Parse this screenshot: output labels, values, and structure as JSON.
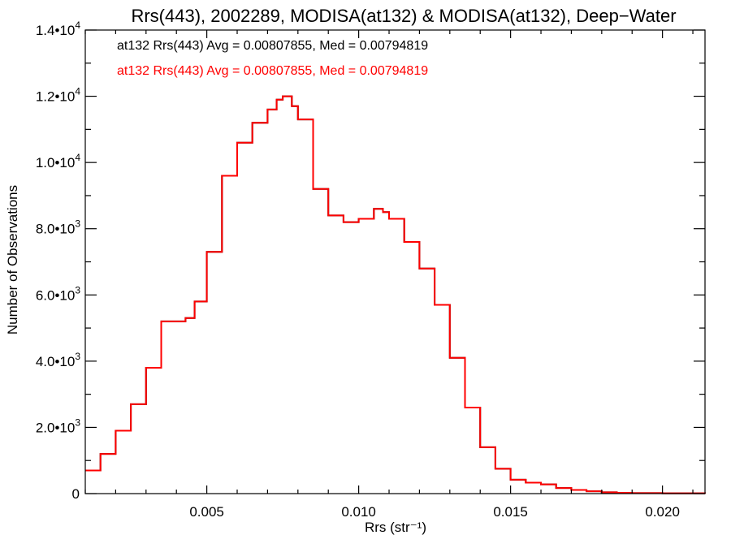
{
  "chart_data": {
    "type": "step-histogram",
    "title": "Rrs(443), 2002289, MODISA(at132) & MODISA(at132), Deep−Water",
    "xlabel": "Rrs (str⁻¹)",
    "ylabel": "Number of Observations",
    "xlim": [
      0.001,
      0.0214
    ],
    "ylim": [
      0,
      14000
    ],
    "x_ticks": [
      {
        "value": 0.005,
        "label": "0.005"
      },
      {
        "value": 0.01,
        "label": "0.010"
      },
      {
        "value": 0.015,
        "label": "0.015"
      },
      {
        "value": 0.02,
        "label": "0.020"
      }
    ],
    "y_ticks": [
      {
        "value": 0,
        "mantissa": "0",
        "exp": ""
      },
      {
        "value": 2000,
        "mantissa": "2.0•10",
        "exp": "3"
      },
      {
        "value": 4000,
        "mantissa": "4.0•10",
        "exp": "3"
      },
      {
        "value": 6000,
        "mantissa": "6.0•10",
        "exp": "3"
      },
      {
        "value": 8000,
        "mantissa": "8.0•10",
        "exp": "3"
      },
      {
        "value": 10000,
        "mantissa": "1.0•10",
        "exp": "4"
      },
      {
        "value": 12000,
        "mantissa": "1.2•10",
        "exp": "4"
      },
      {
        "value": 14000,
        "mantissa": "1.4•10",
        "exp": "4"
      }
    ],
    "legend_entries": [
      {
        "text": "at132 Rrs(443) Avg = 0.00807855, Med = 0.00794819",
        "color": "#000000"
      },
      {
        "text": "at132 Rrs(443) Avg = 0.00807855, Med = 0.00794819",
        "color": "#ff0000"
      }
    ],
    "legend_position": "top-left",
    "series": [
      {
        "color": "#ff0000",
        "x": [
          0.001,
          0.0015,
          0.002,
          0.0025,
          0.003,
          0.0035,
          0.004,
          0.0043,
          0.0046,
          0.005,
          0.0055,
          0.006,
          0.0065,
          0.007,
          0.0073,
          0.0075,
          0.0078,
          0.008,
          0.0085,
          0.009,
          0.0095,
          0.01,
          0.0105,
          0.0108,
          0.011,
          0.0115,
          0.012,
          0.0125,
          0.013,
          0.0135,
          0.014,
          0.0145,
          0.015,
          0.0155,
          0.016,
          0.0165,
          0.017,
          0.0175,
          0.018,
          0.0185,
          0.019,
          0.02,
          0.0214
        ],
        "y": [
          700,
          1200,
          1900,
          2700,
          3800,
          5200,
          5200,
          5300,
          5800,
          7300,
          9600,
          10600,
          11200,
          11600,
          11900,
          12000,
          11700,
          11300,
          9200,
          8400,
          8200,
          8300,
          8600,
          8500,
          8300,
          7600,
          6800,
          5700,
          4100,
          2600,
          1400,
          750,
          420,
          330,
          280,
          170,
          110,
          70,
          40,
          25,
          15,
          10,
          5
        ]
      },
      {
        "color": "#000000",
        "x": [
          0.001,
          0.0015,
          0.002,
          0.0025,
          0.003,
          0.0035,
          0.004,
          0.0043,
          0.0046,
          0.005,
          0.0055,
          0.006,
          0.0065,
          0.007,
          0.0073,
          0.0075,
          0.0078,
          0.008,
          0.0085,
          0.009,
          0.0095,
          0.01,
          0.0105,
          0.0108,
          0.011,
          0.0115,
          0.012,
          0.0125,
          0.013,
          0.0135,
          0.014,
          0.0145,
          0.015,
          0.0155,
          0.016,
          0.0165,
          0.017,
          0.0175,
          0.018,
          0.0185,
          0.019,
          0.02,
          0.0214
        ],
        "y": [
          700,
          1200,
          1900,
          2700,
          3800,
          5200,
          5200,
          5300,
          5800,
          7300,
          9600,
          10600,
          11200,
          11600,
          11900,
          12000,
          11700,
          11300,
          9200,
          8400,
          8200,
          8300,
          8600,
          8500,
          8300,
          7600,
          6800,
          5700,
          4100,
          2600,
          1400,
          750,
          420,
          330,
          280,
          170,
          110,
          70,
          40,
          25,
          15,
          10,
          5
        ]
      }
    ]
  }
}
